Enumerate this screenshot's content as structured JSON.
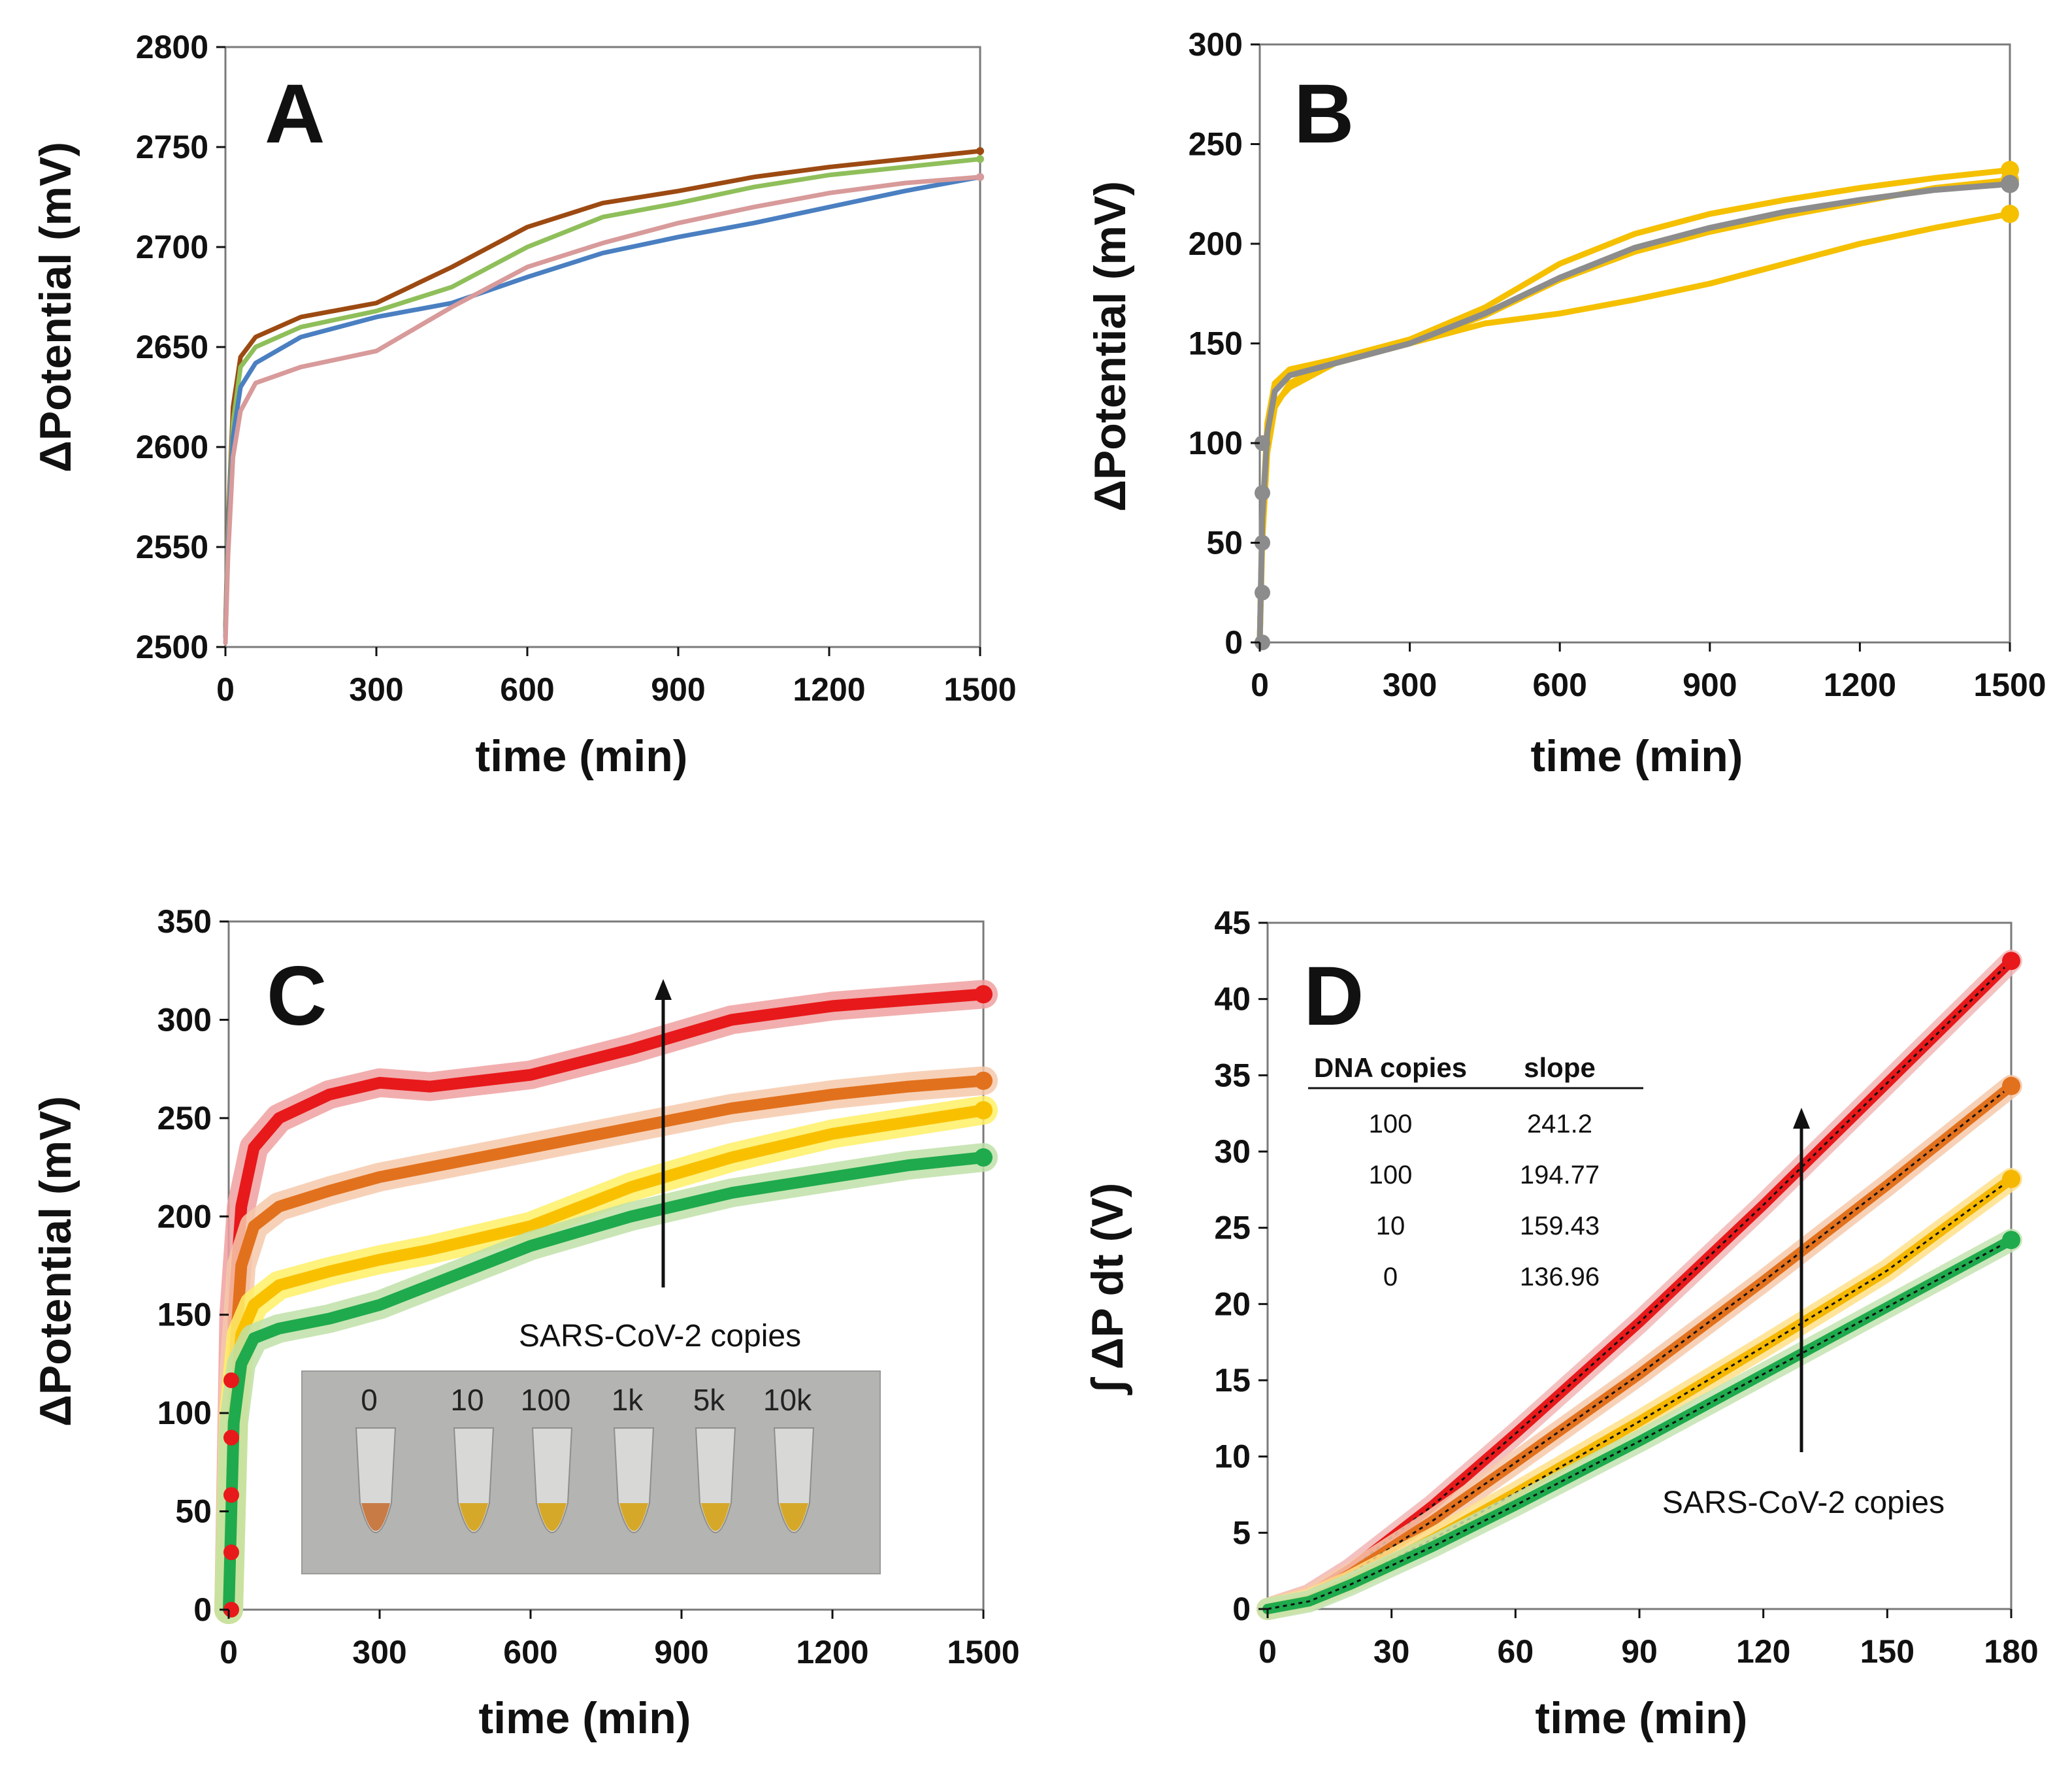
{
  "chart_data": [
    {
      "panel": "A",
      "type": "line",
      "xlabel": "time (min)",
      "ylabel": "ΔPotential (mV)",
      "xlim": [
        0,
        1500
      ],
      "ylim": [
        2500,
        2800
      ],
      "xticks": [
        0,
        300,
        600,
        900,
        1200,
        1500
      ],
      "yticks": [
        2500,
        2550,
        2600,
        2650,
        2700,
        2750,
        2800
      ],
      "series": [
        {
          "name": "brown",
          "color": "#9c4a12",
          "x": [
            0,
            5,
            15,
            30,
            60,
            150,
            300,
            450,
            600,
            750,
            900,
            1050,
            1200,
            1350,
            1500
          ],
          "y": [
            2510,
            2560,
            2620,
            2645,
            2655,
            2665,
            2672,
            2690,
            2710,
            2722,
            2728,
            2735,
            2740,
            2744,
            2748
          ]
        },
        {
          "name": "green",
          "color": "#8fbf5a",
          "x": [
            0,
            5,
            15,
            30,
            60,
            150,
            300,
            450,
            600,
            750,
            900,
            1050,
            1200,
            1350,
            1500
          ],
          "y": [
            2508,
            2555,
            2612,
            2640,
            2650,
            2660,
            2668,
            2680,
            2700,
            2715,
            2722,
            2730,
            2736,
            2740,
            2744
          ]
        },
        {
          "name": "blue",
          "color": "#4a7fc1",
          "x": [
            0,
            5,
            15,
            30,
            60,
            150,
            300,
            450,
            600,
            750,
            900,
            1050,
            1200,
            1350,
            1500
          ],
          "y": [
            2505,
            2550,
            2605,
            2630,
            2642,
            2655,
            2665,
            2672,
            2685,
            2697,
            2705,
            2712,
            2720,
            2728,
            2735
          ]
        },
        {
          "name": "pink",
          "color": "#d89a9a",
          "x": [
            0,
            5,
            15,
            30,
            60,
            150,
            300,
            450,
            600,
            750,
            900,
            1050,
            1200,
            1350,
            1500
          ],
          "y": [
            2502,
            2545,
            2595,
            2618,
            2632,
            2640,
            2648,
            2670,
            2690,
            2702,
            2712,
            2720,
            2727,
            2732,
            2735
          ]
        }
      ]
    },
    {
      "panel": "B",
      "type": "line",
      "xlabel": "time (min)",
      "ylabel": "ΔPotential (mV)",
      "xlim": [
        0,
        1500
      ],
      "ylim": [
        0,
        300
      ],
      "xticks": [
        0,
        300,
        600,
        900,
        1200,
        1500
      ],
      "yticks": [
        0,
        50,
        100,
        150,
        200,
        250,
        300
      ],
      "series": [
        {
          "name": "yellow 1",
          "color": "#f5c000",
          "x": [
            0,
            5,
            15,
            30,
            60,
            150,
            300,
            450,
            600,
            750,
            900,
            1050,
            1200,
            1350,
            1500
          ],
          "y": [
            0,
            60,
            110,
            130,
            137,
            142,
            152,
            168,
            190,
            205,
            215,
            222,
            228,
            233,
            237
          ]
        },
        {
          "name": "yellow 2",
          "color": "#f5c000",
          "x": [
            0,
            5,
            15,
            30,
            60,
            150,
            300,
            450,
            600,
            750,
            900,
            1050,
            1200,
            1350,
            1500
          ],
          "y": [
            0,
            55,
            100,
            120,
            128,
            140,
            150,
            164,
            182,
            196,
            206,
            214,
            221,
            228,
            232
          ]
        },
        {
          "name": "yellow 3",
          "color": "#f5c000",
          "x": [
            0,
            5,
            15,
            30,
            60,
            150,
            300,
            450,
            600,
            750,
            900,
            1050,
            1200,
            1350,
            1500
          ],
          "y": [
            0,
            50,
            95,
            118,
            130,
            142,
            150,
            160,
            165,
            172,
            180,
            190,
            200,
            208,
            215
          ]
        },
        {
          "name": "gray mean",
          "color": "#8c8c8c",
          "x": [
            0,
            5,
            15,
            30,
            60,
            150,
            300,
            450,
            600,
            750,
            900,
            1050,
            1200,
            1350,
            1500
          ],
          "y": [
            0,
            62,
            105,
            126,
            134,
            140,
            150,
            165,
            183,
            198,
            208,
            216,
            222,
            227,
            230
          ]
        }
      ]
    },
    {
      "panel": "C",
      "type": "line",
      "xlabel": "time (min)",
      "ylabel": "ΔPotential (mV)",
      "xlim": [
        0,
        1500
      ],
      "ylim": [
        0,
        350
      ],
      "xticks": [
        0,
        300,
        600,
        900,
        1200,
        1500
      ],
      "yticks": [
        0,
        50,
        100,
        150,
        200,
        250,
        300,
        350
      ],
      "annotation": "SARS-CoV-2 copies",
      "inset_labels": [
        "0",
        "10",
        "100",
        "1k",
        "5k",
        "10k"
      ],
      "series": [
        {
          "name": "red",
          "color": "#e8191b",
          "band": "#f0a0a0",
          "x": [
            0,
            10,
            25,
            50,
            100,
            200,
            300,
            400,
            600,
            800,
            1000,
            1200,
            1350,
            1500
          ],
          "y": [
            0,
            150,
            205,
            235,
            250,
            262,
            268,
            266,
            272,
            285,
            300,
            307,
            310,
            313
          ]
        },
        {
          "name": "orange",
          "color": "#e2711d",
          "band": "#f6c9aa",
          "x": [
            0,
            10,
            25,
            50,
            100,
            200,
            300,
            400,
            600,
            800,
            1000,
            1200,
            1350,
            1500
          ],
          "y": [
            0,
            120,
            175,
            195,
            205,
            213,
            220,
            225,
            235,
            245,
            255,
            262,
            266,
            269
          ]
        },
        {
          "name": "yellow",
          "color": "#f9c000",
          "band": "#fff066",
          "x": [
            0,
            10,
            25,
            50,
            100,
            200,
            300,
            400,
            600,
            800,
            1000,
            1200,
            1350,
            1500
          ],
          "y": [
            0,
            100,
            140,
            155,
            165,
            172,
            178,
            183,
            195,
            215,
            230,
            242,
            248,
            254
          ]
        },
        {
          "name": "green",
          "color": "#1faa4d",
          "band": "#bfe0a8",
          "x": [
            0,
            10,
            25,
            50,
            100,
            200,
            300,
            400,
            600,
            800,
            1000,
            1200,
            1350,
            1500
          ],
          "y": [
            0,
            95,
            125,
            138,
            143,
            148,
            155,
            165,
            185,
            200,
            212,
            220,
            226,
            230
          ]
        }
      ]
    },
    {
      "panel": "D",
      "type": "line",
      "xlabel": "time (min)",
      "ylabel": "∫ ΔP dt  (V)",
      "xlim": [
        0,
        180
      ],
      "ylim": [
        0,
        45
      ],
      "xticks": [
        0,
        30,
        60,
        90,
        120,
        150,
        180
      ],
      "yticks": [
        0,
        5,
        10,
        15,
        20,
        25,
        30,
        35,
        40,
        45
      ],
      "annotation": "SARS-CoV-2 copies",
      "table": {
        "header": [
          "DNA copies",
          "slope"
        ],
        "rows": [
          [
            "100",
            "241.2"
          ],
          [
            "100",
            "194.77"
          ],
          [
            "10",
            "159.43"
          ],
          [
            "0",
            "136.96"
          ]
        ]
      },
      "series": [
        {
          "name": "red",
          "color": "#e8191b",
          "band": "#f2b6b6",
          "x": [
            0,
            10,
            20,
            40,
            60,
            90,
            120,
            150,
            180
          ],
          "y": [
            0,
            0.9,
            2.6,
            6.8,
            11.5,
            18.8,
            26.5,
            34.5,
            42.5
          ]
        },
        {
          "name": "orange",
          "color": "#e2711d",
          "band": "#f6c9aa",
          "x": [
            0,
            10,
            20,
            40,
            60,
            90,
            120,
            150,
            180
          ],
          "y": [
            0,
            0.8,
            2.3,
            5.8,
            9.6,
            15.4,
            21.5,
            27.8,
            34.3
          ]
        },
        {
          "name": "yellow",
          "color": "#f5b700",
          "band": "#ffe08a",
          "x": [
            0,
            10,
            20,
            40,
            60,
            90,
            120,
            150,
            180
          ],
          "y": [
            0,
            0.6,
            1.8,
            4.6,
            7.6,
            12.3,
            17.2,
            22.2,
            28.2
          ]
        },
        {
          "name": "green",
          "color": "#1faa4d",
          "band": "#c3e3b0",
          "x": [
            0,
            10,
            20,
            40,
            60,
            90,
            120,
            150,
            180
          ],
          "y": [
            0,
            0.5,
            1.6,
            4.1,
            6.8,
            11.0,
            15.4,
            19.8,
            24.2
          ]
        }
      ]
    }
  ],
  "panels": {
    "A": {
      "letter": "A"
    },
    "B": {
      "letter": "B"
    },
    "C": {
      "letter": "C"
    },
    "D": {
      "letter": "D"
    }
  }
}
